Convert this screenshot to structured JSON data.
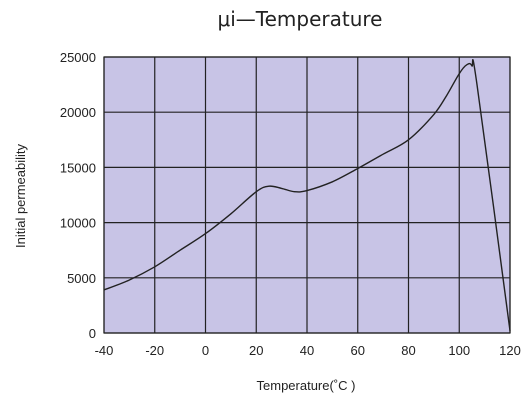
{
  "chart_data": {
    "type": "line",
    "title": "μi—Temperature",
    "xlabel": "Temperature(˚C )",
    "ylabel": "Initial  permeability",
    "xlim": [
      -40,
      120
    ],
    "ylim": [
      0,
      25000
    ],
    "x_ticks": [
      -40,
      -20,
      0,
      20,
      40,
      60,
      80,
      100,
      120
    ],
    "y_ticks": [
      0,
      5000,
      10000,
      15000,
      20000,
      25000
    ],
    "grid": true,
    "colors": {
      "plot_background": "#c8c4e6",
      "grid": "#222222",
      "line": "#222222"
    },
    "series": [
      {
        "x": [
          -40,
          -30,
          -20,
          -10,
          0,
          10,
          20,
          25,
          30,
          35,
          40,
          50,
          60,
          70,
          80,
          90,
          95,
          100,
          103,
          105,
          107,
          120
        ],
        "y": [
          3900,
          4800,
          6000,
          7500,
          9000,
          10800,
          12800,
          13300,
          13100,
          12800,
          12900,
          13700,
          14900,
          16200,
          17500,
          19800,
          21500,
          23500,
          24300,
          24200,
          22500,
          200
        ]
      }
    ]
  }
}
